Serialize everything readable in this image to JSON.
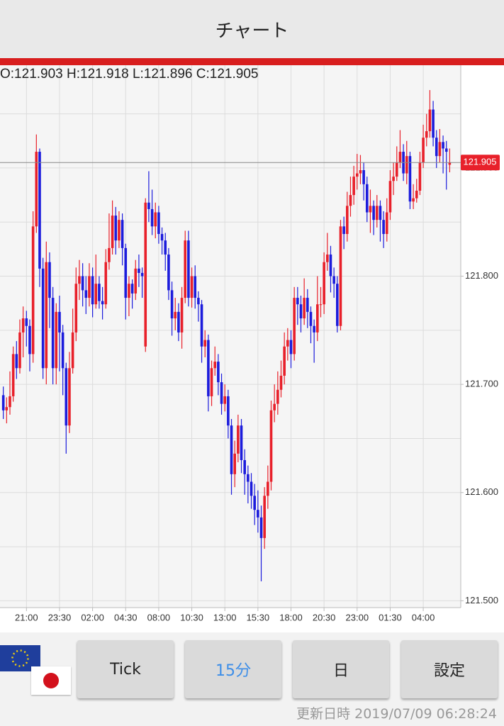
{
  "header": {
    "title": "チャート"
  },
  "chart_data": {
    "type": "candlestick",
    "ohlc_text": "O:121.903 H:121.918 L:121.896 C:121.905",
    "colors": {
      "up": "#e8202a",
      "down": "#1c1cdc"
    },
    "grid": true,
    "last_price": 121.905,
    "xlim": [
      -1,
      136.2
    ],
    "xticks": [
      {
        "value": 7,
        "label": "21:00"
      },
      {
        "value": 17,
        "label": "23:30"
      },
      {
        "value": 27,
        "label": "02:00"
      },
      {
        "value": 37,
        "label": "04:30"
      },
      {
        "value": 47,
        "label": "08:00"
      },
      {
        "value": 57,
        "label": "10:30"
      },
      {
        "value": 67,
        "label": "13:00"
      },
      {
        "value": 77,
        "label": "15:30"
      },
      {
        "value": 87,
        "label": "18:00"
      },
      {
        "value": 97,
        "label": "20:30"
      },
      {
        "value": 107,
        "label": "23:00"
      },
      {
        "value": 117,
        "label": "01:30"
      },
      {
        "value": 127,
        "label": "04:00"
      }
    ],
    "ylim": [
      121.495,
      121.993
    ],
    "yticks": [
      {
        "value": 121.5,
        "label": "121.500"
      },
      {
        "value": 121.6,
        "label": "121.600"
      },
      {
        "value": 121.7,
        "label": "121.700"
      },
      {
        "value": 121.8,
        "label": "121.800"
      },
      {
        "value": 121.9,
        "label": "121.900"
      }
    ],
    "minor_grid": [
      121.55,
      121.65,
      121.75,
      121.85,
      121.95
    ],
    "candles": [
      [
        121.69,
        121.698,
        121.668,
        121.676
      ],
      [
        121.676,
        121.688,
        121.664,
        121.679
      ],
      [
        121.679,
        121.712,
        121.672,
        121.689
      ],
      [
        121.689,
        121.735,
        121.684,
        121.728
      ],
      [
        121.728,
        121.74,
        121.705,
        121.715
      ],
      [
        121.715,
        121.76,
        121.71,
        121.748
      ],
      [
        121.748,
        121.772,
        121.725,
        121.761
      ],
      [
        121.761,
        121.768,
        121.735,
        121.754
      ],
      [
        121.754,
        121.76,
        121.712,
        121.728
      ],
      [
        121.728,
        121.86,
        121.72,
        121.846
      ],
      [
        121.846,
        121.931,
        121.84,
        121.915
      ],
      [
        121.915,
        121.918,
        121.79,
        121.807
      ],
      [
        121.807,
        121.817,
        121.705,
        121.715
      ],
      [
        121.715,
        121.832,
        121.7,
        121.813
      ],
      [
        121.813,
        121.822,
        121.752,
        121.78
      ],
      [
        121.78,
        121.79,
        121.7,
        121.715
      ],
      [
        121.715,
        121.775,
        121.7,
        121.767
      ],
      [
        121.767,
        121.782,
        121.712,
        121.748
      ],
      [
        121.748,
        121.755,
        121.69,
        121.715
      ],
      [
        121.715,
        121.72,
        121.636,
        121.662
      ],
      [
        121.662,
        121.73,
        121.655,
        121.715
      ],
      [
        121.715,
        121.77,
        121.71,
        121.748
      ],
      [
        121.748,
        121.808,
        121.74,
        121.793
      ],
      [
        121.793,
        121.815,
        121.778,
        121.8
      ],
      [
        121.8,
        121.812,
        121.772,
        121.787
      ],
      [
        121.787,
        121.8,
        121.765,
        121.78
      ],
      [
        121.78,
        121.812,
        121.772,
        121.8
      ],
      [
        121.8,
        121.808,
        121.762,
        121.774
      ],
      [
        121.774,
        121.82,
        121.77,
        121.793
      ],
      [
        121.793,
        121.8,
        121.77,
        121.777
      ],
      [
        121.777,
        121.79,
        121.76,
        121.774
      ],
      [
        121.774,
        121.825,
        121.77,
        121.813
      ],
      [
        121.813,
        121.858,
        121.806,
        121.826
      ],
      [
        121.826,
        121.87,
        121.82,
        121.856
      ],
      [
        121.856,
        121.864,
        121.82,
        121.833
      ],
      [
        121.833,
        121.86,
        121.826,
        121.852
      ],
      [
        121.852,
        121.858,
        121.81,
        121.826
      ],
      [
        121.826,
        121.83,
        121.76,
        121.78
      ],
      [
        121.78,
        121.8,
        121.763,
        121.793
      ],
      [
        121.793,
        121.797,
        121.77,
        121.784
      ],
      [
        121.784,
        121.815,
        121.778,
        121.807
      ],
      [
        121.807,
        121.82,
        121.79,
        121.803
      ],
      [
        121.803,
        121.808,
        121.78,
        121.8
      ],
      [
        121.735,
        121.872,
        121.73,
        121.868
      ],
      [
        121.868,
        121.897,
        121.85,
        121.862
      ],
      [
        121.862,
        121.88,
        121.838,
        121.846
      ],
      [
        121.846,
        121.868,
        121.835,
        121.859
      ],
      [
        121.859,
        121.865,
        121.83,
        121.839
      ],
      [
        121.839,
        121.845,
        121.82,
        121.833
      ],
      [
        121.833,
        121.84,
        121.805,
        121.82
      ],
      [
        121.82,
        121.826,
        121.778,
        121.787
      ],
      [
        121.787,
        121.795,
        121.745,
        121.761
      ],
      [
        121.761,
        121.78,
        121.75,
        121.767
      ],
      [
        121.767,
        121.775,
        121.74,
        121.748
      ],
      [
        121.748,
        121.79,
        121.733,
        121.78
      ],
      [
        121.78,
        121.842,
        121.775,
        121.833
      ],
      [
        121.833,
        121.842,
        121.772,
        121.78
      ],
      [
        121.78,
        121.808,
        121.771,
        121.8
      ],
      [
        121.8,
        121.81,
        121.77,
        121.78
      ],
      [
        121.78,
        121.786,
        121.758,
        121.774
      ],
      [
        121.774,
        121.778,
        121.72,
        121.735
      ],
      [
        121.735,
        121.75,
        121.725,
        121.741
      ],
      [
        121.741,
        121.746,
        121.675,
        121.689
      ],
      [
        121.689,
        121.722,
        121.68,
        121.715
      ],
      [
        121.715,
        121.735,
        121.708,
        121.721
      ],
      [
        121.721,
        121.728,
        121.69,
        121.702
      ],
      [
        121.702,
        121.71,
        121.672,
        121.682
      ],
      [
        121.682,
        121.7,
        121.675,
        121.689
      ],
      [
        121.689,
        121.695,
        121.65,
        121.662
      ],
      [
        121.662,
        121.668,
        121.598,
        121.617
      ],
      [
        121.617,
        121.648,
        121.605,
        121.636
      ],
      [
        121.636,
        121.672,
        121.628,
        121.662
      ],
      [
        121.662,
        121.668,
        121.618,
        121.63
      ],
      [
        121.63,
        121.64,
        121.598,
        121.617
      ],
      [
        121.617,
        121.625,
        121.59,
        121.61
      ],
      [
        121.61,
        121.618,
        121.585,
        121.597
      ],
      [
        121.597,
        121.608,
        121.57,
        121.584
      ],
      [
        121.584,
        121.602,
        121.563,
        121.577
      ],
      [
        121.577,
        121.588,
        121.518,
        121.558
      ],
      [
        121.558,
        121.605,
        121.548,
        121.597
      ],
      [
        121.597,
        121.625,
        121.585,
        121.61
      ],
      [
        121.61,
        121.685,
        121.602,
        121.676
      ],
      [
        121.676,
        121.7,
        121.665,
        121.682
      ],
      [
        121.682,
        121.712,
        121.672,
        121.695
      ],
      [
        121.695,
        121.722,
        121.688,
        121.708
      ],
      [
        121.708,
        121.748,
        121.7,
        121.735
      ],
      [
        121.735,
        121.752,
        121.722,
        121.741
      ],
      [
        121.741,
        121.75,
        121.715,
        121.728
      ],
      [
        121.728,
        121.79,
        121.722,
        121.78
      ],
      [
        121.78,
        121.79,
        121.755,
        121.774
      ],
      [
        121.774,
        121.782,
        121.748,
        121.761
      ],
      [
        121.761,
        121.798,
        121.755,
        121.78
      ],
      [
        121.78,
        121.788,
        121.752,
        121.767
      ],
      [
        121.767,
        121.772,
        121.738,
        121.754
      ],
      [
        121.754,
        121.76,
        121.72,
        121.748
      ],
      [
        121.748,
        121.8,
        121.74,
        121.774
      ],
      [
        121.774,
        121.79,
        121.762,
        121.774
      ],
      [
        121.774,
        121.822,
        121.765,
        121.813
      ],
      [
        121.813,
        121.84,
        121.805,
        121.82
      ],
      [
        121.82,
        121.828,
        121.785,
        121.8
      ],
      [
        121.8,
        121.808,
        121.78,
        121.793
      ],
      [
        121.793,
        121.8,
        121.748,
        121.754
      ],
      [
        121.754,
        121.852,
        121.75,
        121.846
      ],
      [
        121.846,
        121.855,
        121.825,
        121.839
      ],
      [
        121.839,
        121.878,
        121.832,
        121.865
      ],
      [
        121.865,
        121.892,
        121.855,
        121.875
      ],
      [
        121.875,
        121.902,
        121.866,
        121.892
      ],
      [
        121.892,
        121.913,
        121.88,
        121.895
      ],
      [
        121.895,
        121.912,
        121.885,
        121.898
      ],
      [
        121.898,
        121.905,
        121.87,
        121.885
      ],
      [
        121.885,
        121.892,
        121.85,
        121.859
      ],
      [
        121.859,
        121.88,
        121.84,
        121.865
      ],
      [
        121.865,
        121.87,
        121.838,
        121.852
      ],
      [
        121.852,
        121.875,
        121.845,
        121.865
      ],
      [
        121.865,
        121.87,
        121.832,
        121.852
      ],
      [
        121.852,
        121.86,
        121.826,
        121.839
      ],
      [
        121.839,
        121.872,
        121.832,
        121.859
      ],
      [
        121.859,
        121.898,
        121.852,
        121.888
      ],
      [
        121.888,
        121.905,
        121.875,
        121.892
      ],
      [
        121.892,
        121.92,
        121.888,
        121.905
      ],
      [
        121.905,
        121.935,
        121.9,
        121.915
      ],
      [
        121.915,
        121.922,
        121.888,
        121.895
      ],
      [
        121.895,
        121.925,
        121.885,
        121.911
      ],
      [
        121.911,
        121.915,
        121.862,
        121.869
      ],
      [
        121.869,
        121.885,
        121.862,
        121.872
      ],
      [
        121.872,
        121.89,
        121.868,
        121.879
      ],
      [
        121.879,
        121.915,
        121.875,
        121.905
      ],
      [
        121.905,
        121.94,
        121.9,
        121.928
      ],
      [
        121.928,
        121.95,
        121.92,
        121.934
      ],
      [
        121.934,
        121.972,
        121.928,
        121.954
      ],
      [
        121.954,
        121.962,
        121.92,
        121.928
      ],
      [
        121.928,
        121.935,
        121.9,
        121.911
      ],
      [
        121.911,
        121.936,
        121.905,
        121.924
      ],
      [
        121.924,
        121.93,
        121.895,
        121.918
      ],
      [
        121.918,
        121.925,
        121.88,
        121.915
      ],
      [
        121.903,
        121.918,
        121.896,
        121.905
      ]
    ]
  },
  "buttons": [
    "Tick",
    "15分",
    "日",
    "設定"
  ],
  "selected_button": 1,
  "footer": {
    "updated": "更新日時 2019/07/09 06:28:24"
  }
}
